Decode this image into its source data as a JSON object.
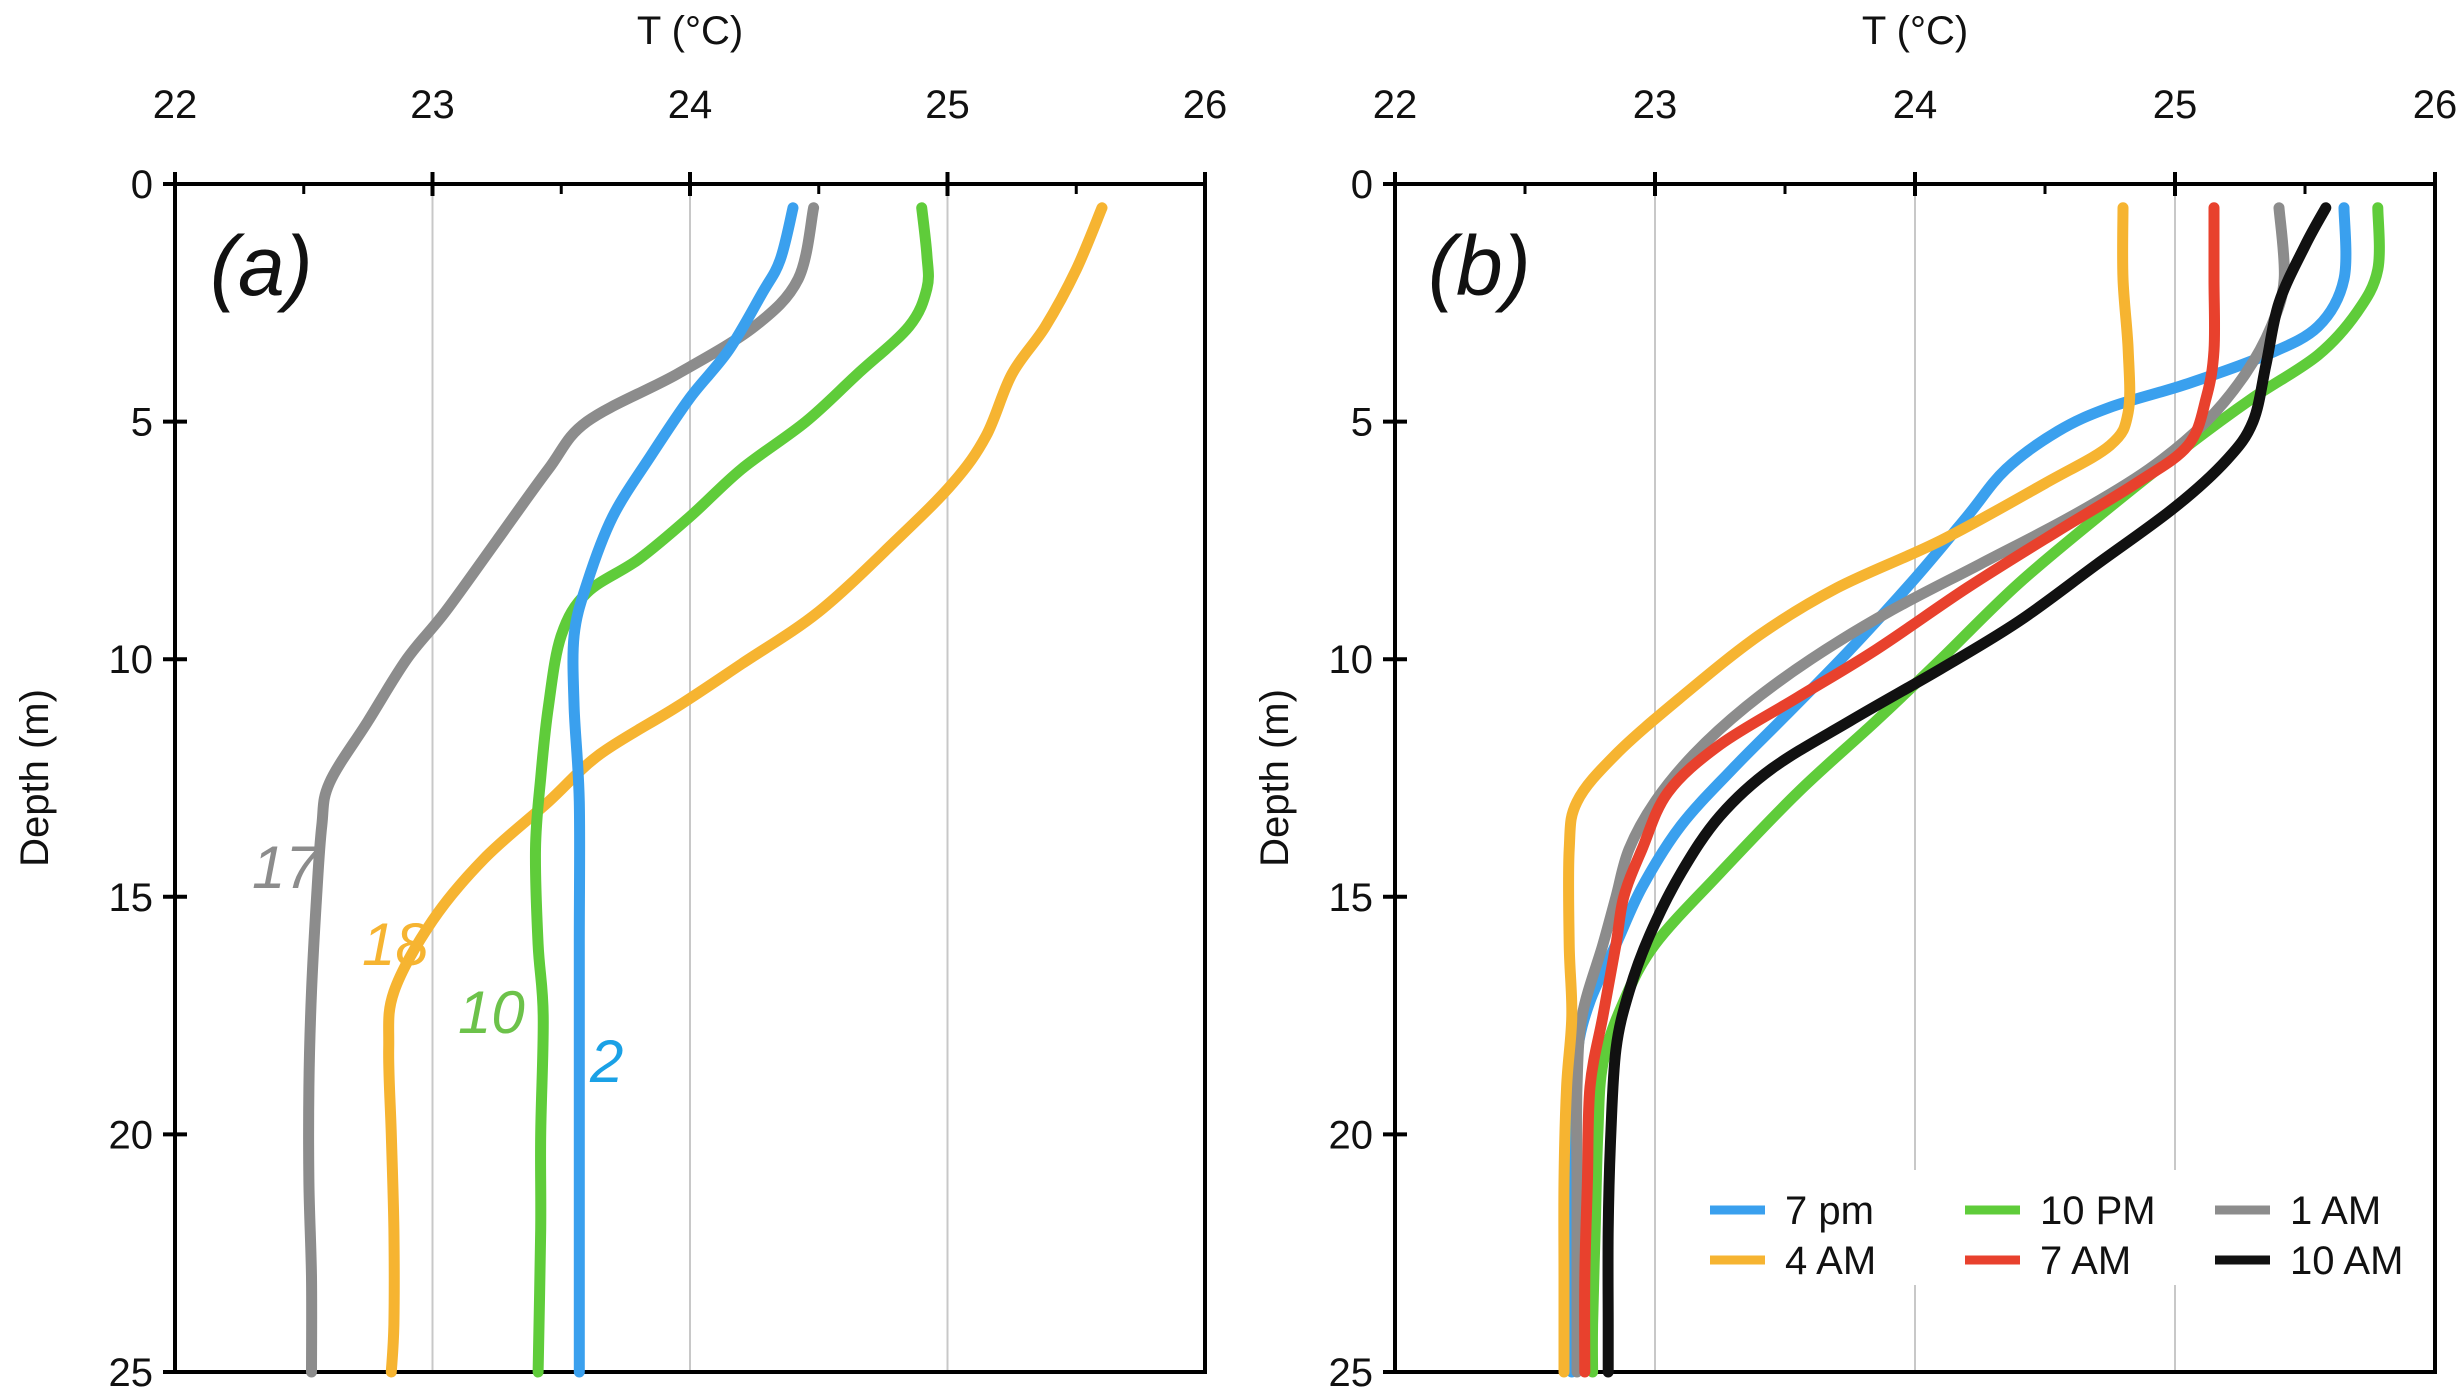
{
  "chart_data": [
    {
      "type": "line",
      "panel_label": "(a)",
      "xlabel": "T (°C)",
      "ylabel": "Depth (m)",
      "xlim": [
        22,
        26
      ],
      "ylim": [
        0,
        25
      ],
      "xticks": [
        "22",
        "23",
        "24",
        "25",
        "26"
      ],
      "yticks": [
        "0",
        "5",
        "10",
        "15",
        "20",
        "25"
      ],
      "x_gridlines": [
        23,
        24,
        25
      ],
      "series": [
        {
          "name": "17",
          "color": "#8c8c8c",
          "points": [
            [
              24.48,
              0.5
            ],
            [
              24.42,
              2
            ],
            [
              24.25,
              3
            ],
            [
              23.95,
              4
            ],
            [
              23.6,
              5
            ],
            [
              23.45,
              6
            ],
            [
              23.25,
              7.5
            ],
            [
              23.05,
              9
            ],
            [
              22.9,
              10
            ],
            [
              22.75,
              11.3
            ],
            [
              22.6,
              12.6
            ],
            [
              22.57,
              13.5
            ],
            [
              22.55,
              15
            ],
            [
              22.53,
              17
            ],
            [
              22.52,
              19
            ],
            [
              22.52,
              21
            ],
            [
              22.53,
              23
            ],
            [
              22.53,
              25
            ]
          ]
        },
        {
          "name": "18",
          "color": "#f6b431",
          "points": [
            [
              25.6,
              0.5
            ],
            [
              25.5,
              1.8
            ],
            [
              25.38,
              3
            ],
            [
              25.25,
              4
            ],
            [
              25.15,
              5.3
            ],
            [
              25.02,
              6.3
            ],
            [
              24.8,
              7.5
            ],
            [
              24.5,
              9
            ],
            [
              24.2,
              10.1
            ],
            [
              23.95,
              11
            ],
            [
              23.65,
              12
            ],
            [
              23.45,
              13
            ],
            [
              23.2,
              14.2
            ],
            [
              23.0,
              15.5
            ],
            [
              22.85,
              17
            ],
            [
              22.83,
              18.2
            ],
            [
              22.84,
              20
            ],
            [
              22.85,
              22
            ],
            [
              22.85,
              24
            ],
            [
              22.84,
              25
            ]
          ]
        },
        {
          "name": "10",
          "color": "#5fcc3a",
          "points": [
            [
              24.9,
              0.5
            ],
            [
              24.92,
              1.5
            ],
            [
              24.92,
              2.2
            ],
            [
              24.85,
              3
            ],
            [
              24.65,
              4
            ],
            [
              24.45,
              5
            ],
            [
              24.2,
              6
            ],
            [
              24.0,
              7
            ],
            [
              23.8,
              7.9
            ],
            [
              23.6,
              8.6
            ],
            [
              23.5,
              9.5
            ],
            [
              23.45,
              11
            ],
            [
              23.42,
              12.5
            ],
            [
              23.4,
              14
            ],
            [
              23.41,
              16
            ],
            [
              23.43,
              17.5
            ],
            [
              23.42,
              20
            ],
            [
              23.42,
              22
            ],
            [
              23.41,
              25
            ]
          ]
        },
        {
          "name": "2",
          "color": "#3aa0ee",
          "points": [
            [
              24.4,
              0.5
            ],
            [
              24.35,
              1.6
            ],
            [
              24.28,
              2.3
            ],
            [
              24.15,
              3.5
            ],
            [
              24.0,
              4.5
            ],
            [
              23.85,
              5.7
            ],
            [
              23.7,
              7
            ],
            [
              23.6,
              8.4
            ],
            [
              23.55,
              9.5
            ],
            [
              23.55,
              11
            ],
            [
              23.57,
              13
            ],
            [
              23.57,
              16
            ],
            [
              23.57,
              20
            ],
            [
              23.57,
              25
            ]
          ]
        }
      ],
      "annotations": [
        {
          "text": "17",
          "color": "#8c8c8c"
        },
        {
          "text": "18",
          "color": "#f6b431"
        },
        {
          "text": "10",
          "color": "#6cc24a"
        },
        {
          "text": "2",
          "color": "#1aa1e6"
        }
      ]
    },
    {
      "type": "line",
      "panel_label": "(b)",
      "xlabel": "T (°C)",
      "ylabel": "Depth (m)",
      "xlim": [
        22,
        26
      ],
      "ylim": [
        0,
        25
      ],
      "xticks": [
        "22",
        "23",
        "24",
        "25",
        "26"
      ],
      "yticks": [
        "0",
        "5",
        "10",
        "15",
        "20",
        "25"
      ],
      "x_gridlines": [
        23,
        24,
        25
      ],
      "legend_position": "bottom-right",
      "series": [
        {
          "name": "7 pm",
          "color": "#3aa0ee",
          "points": [
            [
              25.65,
              0.5
            ],
            [
              25.65,
              2
            ],
            [
              25.55,
              3
            ],
            [
              25.35,
              3.6
            ],
            [
              25.05,
              4.2
            ],
            [
              24.75,
              4.7
            ],
            [
              24.55,
              5.2
            ],
            [
              24.35,
              6
            ],
            [
              24.2,
              7
            ],
            [
              24.0,
              8.3
            ],
            [
              23.75,
              9.8
            ],
            [
              23.5,
              11.2
            ],
            [
              23.3,
              12.3
            ],
            [
              23.1,
              13.5
            ],
            [
              22.95,
              14.8
            ],
            [
              22.85,
              16
            ],
            [
              22.75,
              17.2
            ],
            [
              22.7,
              18.3
            ],
            [
              22.68,
              20
            ],
            [
              22.68,
              22
            ],
            [
              22.68,
              24
            ],
            [
              22.68,
              25
            ]
          ]
        },
        {
          "name": "10 PM",
          "color": "#5fcc3a",
          "points": [
            [
              25.78,
              0.5
            ],
            [
              25.78,
              1.8
            ],
            [
              25.7,
              2.7
            ],
            [
              25.55,
              3.6
            ],
            [
              25.3,
              4.5
            ],
            [
              25.05,
              5.5
            ],
            [
              24.75,
              6.8
            ],
            [
              24.4,
              8.4
            ],
            [
              24.1,
              10
            ],
            [
              23.85,
              11.3
            ],
            [
              23.55,
              12.8
            ],
            [
              23.25,
              14.5
            ],
            [
              23.0,
              16
            ],
            [
              22.88,
              17.2
            ],
            [
              22.8,
              18.5
            ],
            [
              22.78,
              20
            ],
            [
              22.77,
              22
            ],
            [
              22.76,
              24
            ],
            [
              22.76,
              25
            ]
          ]
        },
        {
          "name": "1 AM",
          "color": "#8c8c8c",
          "points": [
            [
              25.4,
              0.5
            ],
            [
              25.42,
              2
            ],
            [
              25.37,
              3
            ],
            [
              25.27,
              4
            ],
            [
              25.12,
              5
            ],
            [
              24.9,
              6
            ],
            [
              24.6,
              7
            ],
            [
              24.25,
              8
            ],
            [
              23.9,
              9
            ],
            [
              23.6,
              10
            ],
            [
              23.35,
              11
            ],
            [
              23.15,
              12
            ],
            [
              23.0,
              13
            ],
            [
              22.9,
              14
            ],
            [
              22.85,
              15
            ],
            [
              22.8,
              16
            ],
            [
              22.72,
              17.5
            ],
            [
              22.7,
              19
            ],
            [
              22.7,
              21
            ],
            [
              22.7,
              23
            ],
            [
              22.7,
              25
            ]
          ]
        },
        {
          "name": "4 AM",
          "color": "#f6b431",
          "points": [
            [
              24.8,
              0.5
            ],
            [
              24.8,
              2
            ],
            [
              24.82,
              3.5
            ],
            [
              24.82,
              4.8
            ],
            [
              24.75,
              5.5
            ],
            [
              24.5,
              6.3
            ],
            [
              24.1,
              7.5
            ],
            [
              23.7,
              8.5
            ],
            [
              23.4,
              9.5
            ],
            [
              23.1,
              10.8
            ],
            [
              22.85,
              12
            ],
            [
              22.7,
              13
            ],
            [
              22.67,
              14
            ],
            [
              22.67,
              16
            ],
            [
              22.68,
              17.5
            ],
            [
              22.66,
              19
            ],
            [
              22.65,
              21
            ],
            [
              22.65,
              23
            ],
            [
              22.65,
              25
            ]
          ]
        },
        {
          "name": "7 AM",
          "color": "#e8412d",
          "points": [
            [
              25.15,
              0.5
            ],
            [
              25.15,
              2
            ],
            [
              25.15,
              3.5
            ],
            [
              25.12,
              4.5
            ],
            [
              25.05,
              5.5
            ],
            [
              24.85,
              6.3
            ],
            [
              24.55,
              7.3
            ],
            [
              24.2,
              8.5
            ],
            [
              23.85,
              9.8
            ],
            [
              23.55,
              10.8
            ],
            [
              23.25,
              11.8
            ],
            [
              23.05,
              12.8
            ],
            [
              22.95,
              14
            ],
            [
              22.88,
              15
            ],
            [
              22.85,
              16
            ],
            [
              22.8,
              17.5
            ],
            [
              22.75,
              19
            ],
            [
              22.74,
              21
            ],
            [
              22.73,
              23
            ],
            [
              22.73,
              25
            ]
          ]
        },
        {
          "name": "10 AM",
          "color": "#111111",
          "points": [
            [
              25.58,
              0.5
            ],
            [
              25.5,
              1.3
            ],
            [
              25.4,
              2.5
            ],
            [
              25.35,
              3.8
            ],
            [
              25.3,
              5
            ],
            [
              25.2,
              5.8
            ],
            [
              25.0,
              6.8
            ],
            [
              24.7,
              8
            ],
            [
              24.4,
              9.2
            ],
            [
              24.1,
              10.2
            ],
            [
              23.75,
              11.3
            ],
            [
              23.45,
              12.3
            ],
            [
              23.25,
              13.3
            ],
            [
              23.1,
              14.5
            ],
            [
              22.98,
              15.8
            ],
            [
              22.9,
              17
            ],
            [
              22.85,
              18.2
            ],
            [
              22.83,
              20
            ],
            [
              22.82,
              22
            ],
            [
              22.82,
              24
            ],
            [
              22.82,
              25
            ]
          ]
        }
      ],
      "legend": [
        {
          "label": "7 pm",
          "color": "#3aa0ee"
        },
        {
          "label": "10 PM",
          "color": "#5fcc3a"
        },
        {
          "label": "1 AM",
          "color": "#8c8c8c"
        },
        {
          "label": "4 AM",
          "color": "#f6b431"
        },
        {
          "label": "7 AM",
          "color": "#e8412d"
        },
        {
          "label": "10 AM",
          "color": "#111111"
        }
      ]
    }
  ]
}
